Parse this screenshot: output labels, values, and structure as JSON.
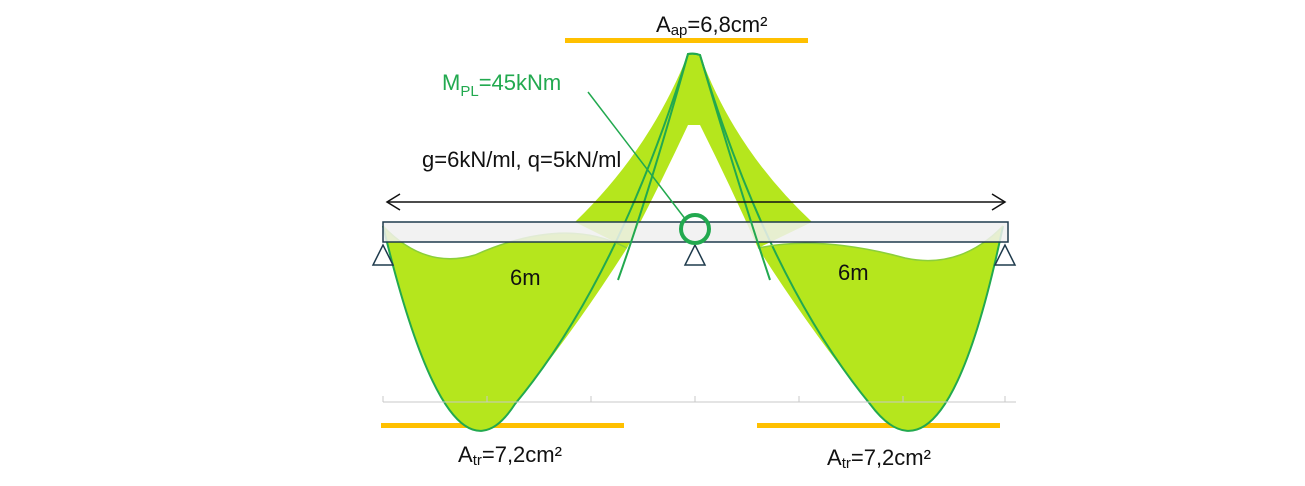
{
  "labels": {
    "top_area": {
      "A": "A",
      "sub": "ap",
      "rest": "=6,8cm²"
    },
    "moment": {
      "M": "M",
      "sub": "PL",
      "rest": "=45kNm"
    },
    "loads": "g=6kN/ml, q=5kN/ml",
    "span_left": "6m",
    "span_right": "6m",
    "bottom_left": {
      "A": "A",
      "sub": "tr",
      "rest": "=7,2cm²"
    },
    "bottom_right": {
      "A": "A",
      "sub": "tr",
      "rest": "=7,2cm²"
    }
  },
  "colors": {
    "envelope_fill": "#b5e61d",
    "envelope_stroke": "#22a94f",
    "rebar": "#ffc000",
    "beam_fill": "#f0f0f0",
    "beam_stroke": "#1f3b4d",
    "support": "#1f3b4d",
    "moment_label": "#22a94f",
    "text": "#111111"
  },
  "icons": {
    "support": "triangle-support-icon",
    "plastic_hinge": "circle-hinge-icon",
    "dimension_arrow": "double-arrow-icon"
  }
}
